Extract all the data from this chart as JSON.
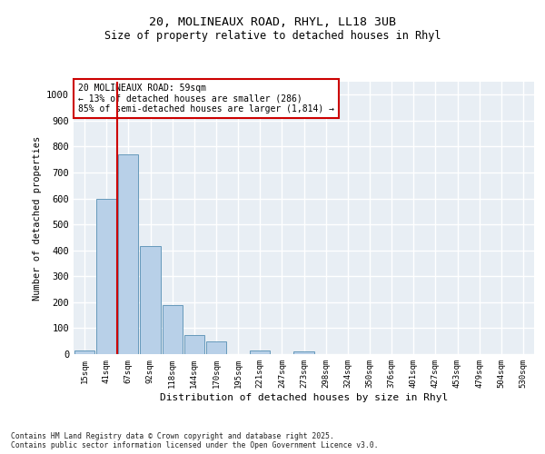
{
  "title_line1": "20, MOLINEAUX ROAD, RHYL, LL18 3UB",
  "title_line2": "Size of property relative to detached houses in Rhyl",
  "xlabel": "Distribution of detached houses by size in Rhyl",
  "ylabel": "Number of detached properties",
  "categories": [
    "15sqm",
    "41sqm",
    "67sqm",
    "92sqm",
    "118sqm",
    "144sqm",
    "170sqm",
    "195sqm",
    "221sqm",
    "247sqm",
    "273sqm",
    "298sqm",
    "324sqm",
    "350sqm",
    "376sqm",
    "401sqm",
    "427sqm",
    "453sqm",
    "479sqm",
    "504sqm",
    "530sqm"
  ],
  "values": [
    15,
    600,
    770,
    415,
    190,
    75,
    50,
    0,
    15,
    0,
    10,
    0,
    0,
    0,
    0,
    0,
    0,
    0,
    0,
    0,
    0
  ],
  "bar_color": "#b8d0e8",
  "bar_edge_color": "#6699bb",
  "vline_color": "#cc0000",
  "vline_x": 1.5,
  "annotation_text": "20 MOLINEAUX ROAD: 59sqm\n← 13% of detached houses are smaller (286)\n85% of semi-detached houses are larger (1,814) →",
  "annotation_box_facecolor": "#ffffff",
  "annotation_box_edgecolor": "#cc0000",
  "ylim": [
    0,
    1050
  ],
  "yticks": [
    0,
    100,
    200,
    300,
    400,
    500,
    600,
    700,
    800,
    900,
    1000
  ],
  "plot_bg_color": "#e8eef4",
  "grid_color": "#ffffff",
  "fig_bg_color": "#ffffff",
  "footer_line1": "Contains HM Land Registry data © Crown copyright and database right 2025.",
  "footer_line2": "Contains public sector information licensed under the Open Government Licence v3.0."
}
